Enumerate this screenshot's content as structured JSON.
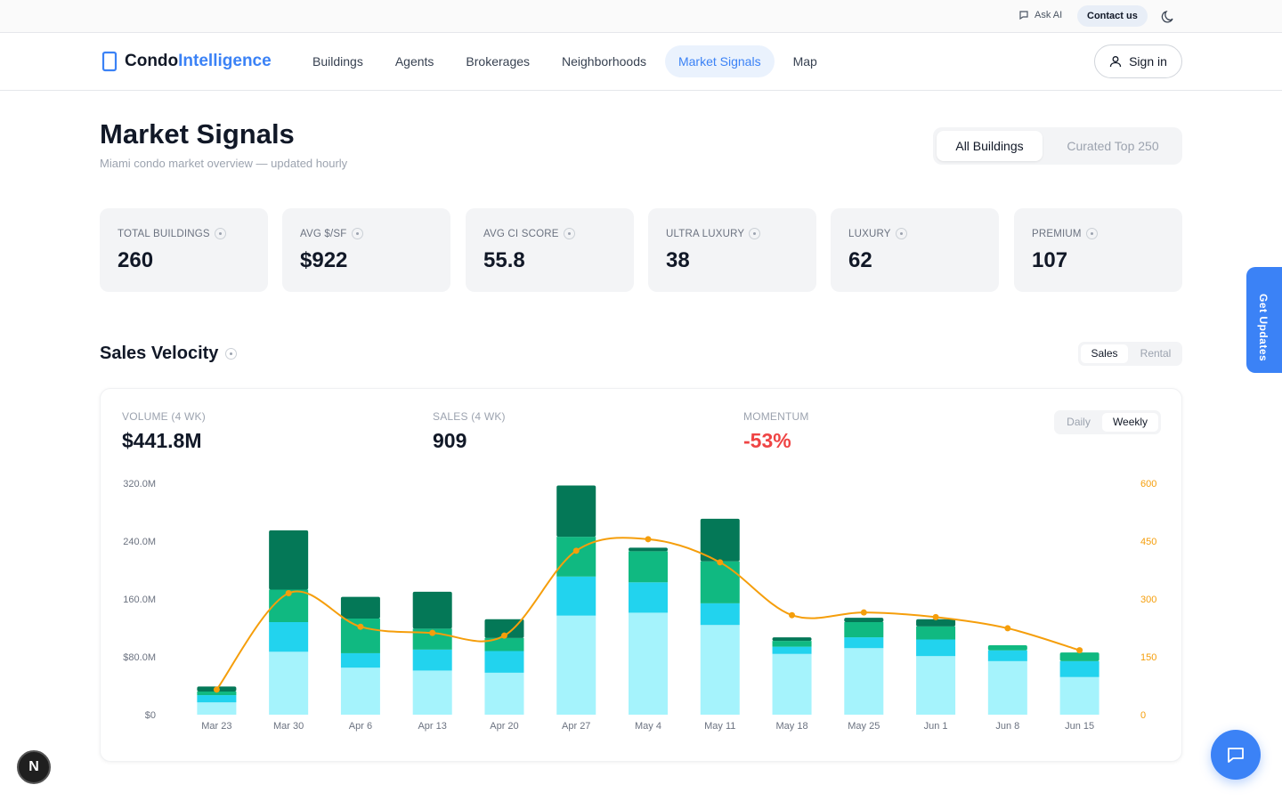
{
  "topbar": {
    "ask_ai": "Ask AI",
    "contact": "Contact us"
  },
  "brand": {
    "part1": "Condo",
    "part2": "Intelligence"
  },
  "nav": {
    "items": [
      "Buildings",
      "Agents",
      "Brokerages",
      "Neighborhoods",
      "Market Signals",
      "Map"
    ],
    "active": "Market Signals",
    "signin": "Sign in"
  },
  "page": {
    "title": "Market Signals",
    "subtitle": "Miami condo market overview — updated hourly"
  },
  "scope": {
    "on": "All Buildings",
    "off": "Curated Top 250"
  },
  "stats": [
    {
      "label": "TOTAL BUILDINGS",
      "value": "260"
    },
    {
      "label": "AVG $/SF",
      "value": "$922"
    },
    {
      "label": "AVG CI SCORE",
      "value": "55.8"
    },
    {
      "label": "ULTRA LUXURY",
      "value": "38"
    },
    {
      "label": "LUXURY",
      "value": "62"
    },
    {
      "label": "PREMIUM",
      "value": "107"
    }
  ],
  "velocity": {
    "title": "Sales Velocity",
    "toggle": {
      "a": "Sales",
      "b": "Rental"
    },
    "metrics": [
      {
        "label": "VOLUME (4 WK)",
        "value": "$441.8M"
      },
      {
        "label": "SALES (4 WK)",
        "value": "909"
      },
      {
        "label": "MOMENTUM",
        "value": "-53%"
      }
    ],
    "period": {
      "a": "Daily",
      "b": "Weekly"
    }
  },
  "chart_data": {
    "type": "bar",
    "categories": [
      "Mar 23",
      "Mar 30",
      "Apr 6",
      "Apr 13",
      "Apr 20",
      "Apr 27",
      "May 4",
      "May 11",
      "May 18",
      "May 25",
      "Jun 1",
      "Jun 8",
      "Jun 15"
    ],
    "stacked": true,
    "series": [
      {
        "values": [
          17,
          87,
          65,
          61,
          58,
          137,
          141,
          124,
          84,
          92,
          81,
          74,
          52
        ],
        "color": "#a5f3fc"
      },
      {
        "values": [
          10,
          41,
          20,
          29,
          30,
          54,
          42,
          30,
          10,
          15,
          23,
          15,
          22
        ],
        "color": "#22d3ee"
      },
      {
        "values": [
          5,
          45,
          48,
          29,
          18,
          55,
          43,
          58,
          8,
          21,
          18,
          7,
          12
        ],
        "color": "#10b981"
      },
      {
        "values": [
          7,
          82,
          30,
          51,
          26,
          71,
          5,
          59,
          5,
          6,
          10,
          0,
          0
        ],
        "color": "#047857"
      }
    ],
    "line": {
      "axis": "right",
      "color": "#f59e0b",
      "values": [
        65,
        315,
        228,
        212,
        205,
        425,
        455,
        395,
        258,
        265,
        253,
        224,
        167
      ]
    },
    "y_left": {
      "ticks": [
        "$0",
        "$80.0M",
        "160.0M",
        "240.0M",
        "320.0M"
      ],
      "range": [
        0,
        320
      ]
    },
    "y_right": {
      "ticks": [
        "0",
        "150",
        "300",
        "450",
        "600"
      ],
      "range": [
        0,
        600
      ]
    }
  },
  "widgets": {
    "updates": "Get Updates",
    "badge": "N"
  }
}
